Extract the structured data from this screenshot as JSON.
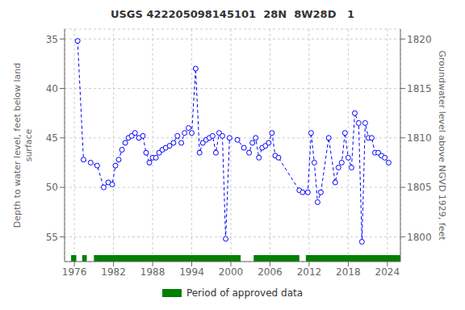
{
  "chart_data": {
    "type": "line",
    "title": "USGS 422205098145101  28N  8W28D   1",
    "ylabel": "Depth to water level, feet below land\nsurface",
    "y2label": "Groundwater level above NGVD 1929, feet",
    "x": [
      1976.5,
      1977.4,
      1978.5,
      1979.5,
      1980.5,
      1981.2,
      1981.8,
      1982.3,
      1982.8,
      1983.3,
      1983.8,
      1984.3,
      1984.8,
      1985.3,
      1985.9,
      1986.5,
      1987.0,
      1987.5,
      1988.0,
      1988.5,
      1989.0,
      1989.5,
      1990.0,
      1990.6,
      1991.2,
      1991.8,
      1992.4,
      1992.9,
      1993.5,
      1994.0,
      1994.6,
      1995.2,
      1995.7,
      1996.2,
      1996.7,
      1997.2,
      1997.7,
      1998.2,
      1998.7,
      1999.2,
      1999.8,
      2001.0,
      2002.0,
      2002.8,
      2003.3,
      2003.8,
      2004.3,
      2004.8,
      2005.3,
      2005.8,
      2006.3,
      2006.8,
      2007.3,
      2010.5,
      2011.0,
      2011.8,
      2012.3,
      2012.8,
      2013.3,
      2013.8,
      2015.0,
      2016.0,
      2016.5,
      2017.0,
      2017.5,
      2018.0,
      2018.5,
      2019.0,
      2019.6,
      2020.1,
      2020.6,
      2021.1,
      2021.6,
      2022.1,
      2022.6,
      2023.1,
      2023.6,
      2024.2
    ],
    "values": [
      35.2,
      47.2,
      47.5,
      47.8,
      50.0,
      49.5,
      49.7,
      47.8,
      47.2,
      46.2,
      45.5,
      45.0,
      44.8,
      44.5,
      45.0,
      44.8,
      46.5,
      47.5,
      47.0,
      47.0,
      46.5,
      46.2,
      46.0,
      45.8,
      45.5,
      44.8,
      45.5,
      44.5,
      44.0,
      44.5,
      38.0,
      46.5,
      45.5,
      45.2,
      45.0,
      44.8,
      46.5,
      44.5,
      44.8,
      55.2,
      45.0,
      45.2,
      46.0,
      46.5,
      45.5,
      45.0,
      47.0,
      46.0,
      45.8,
      45.5,
      44.5,
      46.8,
      47.0,
      50.3,
      50.5,
      50.5,
      44.5,
      47.5,
      51.5,
      50.5,
      45.0,
      49.5,
      48.0,
      47.5,
      44.5,
      47.0,
      48.0,
      42.5,
      43.5,
      55.5,
      43.5,
      45.0,
      45.0,
      46.5,
      46.5,
      46.8,
      47.0,
      47.5
    ],
    "color": "#0000ff",
    "marker": "open circle",
    "line_style": "dashed",
    "xlim": [
      1974.5,
      2026.0
    ],
    "xticks": [
      1976,
      1982,
      1988,
      1994,
      2000,
      2006,
      2012,
      2018,
      2024
    ],
    "ylim": [
      57.5,
      34.0
    ],
    "yticks": [
      35,
      40,
      45,
      50,
      55
    ],
    "y2lim": [
      1797.5,
      1821.0
    ],
    "y2ticks": [
      1800,
      1805,
      1810,
      1815,
      1820
    ],
    "grid": true,
    "legend": "bottom",
    "approved_periods": {
      "name": "Period of approved data",
      "color": "#008000",
      "ranges": [
        [
          1975.5,
          1976.3
        ],
        [
          1977.2,
          1977.9
        ],
        [
          1979.0,
          2001.5
        ],
        [
          2003.5,
          2010.5
        ],
        [
          2011.5,
          2026.0
        ]
      ]
    }
  }
}
